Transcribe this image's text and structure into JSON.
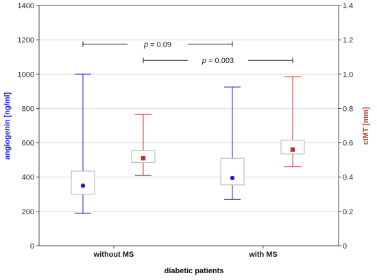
{
  "chart_data": {
    "type": "box",
    "categories": [
      "without MS",
      "with MS"
    ],
    "xlabel": "diabetic patients",
    "left_axis": {
      "label": "angiogenin [ng/ml]",
      "color": "#1a1adb",
      "ylim": [
        0,
        1400
      ],
      "ticks": [
        0,
        200,
        400,
        600,
        800,
        1000,
        1200,
        1400
      ],
      "tick_labels": [
        "0",
        "200",
        "400",
        "600",
        "800",
        "1000",
        "1200",
        "1400"
      ]
    },
    "right_axis": {
      "label": "cIMT [mm]",
      "color": "#c0392b",
      "ylim": [
        0,
        1.4
      ],
      "ticks": [
        0,
        0.2,
        0.4,
        0.6,
        0.8,
        1.0,
        1.2,
        1.4
      ],
      "tick_labels": [
        "0",
        "0.2",
        "0.4",
        "0.6",
        "0.8",
        "1.0",
        "1.2",
        "1.4"
      ]
    },
    "grid": true,
    "series": [
      {
        "name": "angiogenin",
        "axis": "left",
        "whisker_color": "#1a1adb",
        "marker_color": "#1a1adb",
        "marker": "circle",
        "boxes": [
          {
            "category": "without MS",
            "median": 350,
            "q1": 300,
            "q3": 435,
            "min": 190,
            "max": 1000
          },
          {
            "category": "with MS",
            "median": 395,
            "q1": 355,
            "q3": 510,
            "min": 270,
            "max": 925
          }
        ]
      },
      {
        "name": "cIMT",
        "axis": "right",
        "whisker_color": "#c0392b",
        "marker_color": "#b03a1e",
        "marker": "square",
        "boxes": [
          {
            "category": "without MS",
            "median": 0.51,
            "q1": 0.485,
            "q3": 0.555,
            "min": 0.41,
            "max": 0.765
          },
          {
            "category": "with MS",
            "median": 0.56,
            "q1": 0.535,
            "q3": 0.615,
            "min": 0.46,
            "max": 0.985
          }
        ]
      }
    ],
    "annotations": [
      {
        "p_symbol": "p",
        "text": " = 0.09",
        "from": "without MS",
        "to": "with MS",
        "compares": "angiogenin",
        "level": 1175
      },
      {
        "p_symbol": "p",
        "text": " = 0.003",
        "from": "without MS",
        "to": "with MS",
        "compares": "cIMT",
        "level": 1080
      }
    ]
  }
}
